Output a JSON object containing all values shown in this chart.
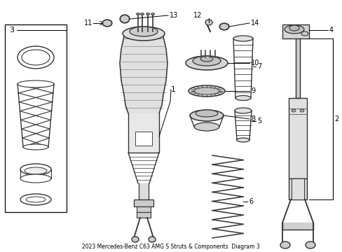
{
  "title": "2023 Mercedes-Benz C63 AMG S Struts & Components  Diagram 3",
  "bg_color": "#ffffff",
  "line_color": "#000000",
  "text_color": "#000000",
  "fig_width": 4.89,
  "fig_height": 3.6,
  "dpi": 100
}
